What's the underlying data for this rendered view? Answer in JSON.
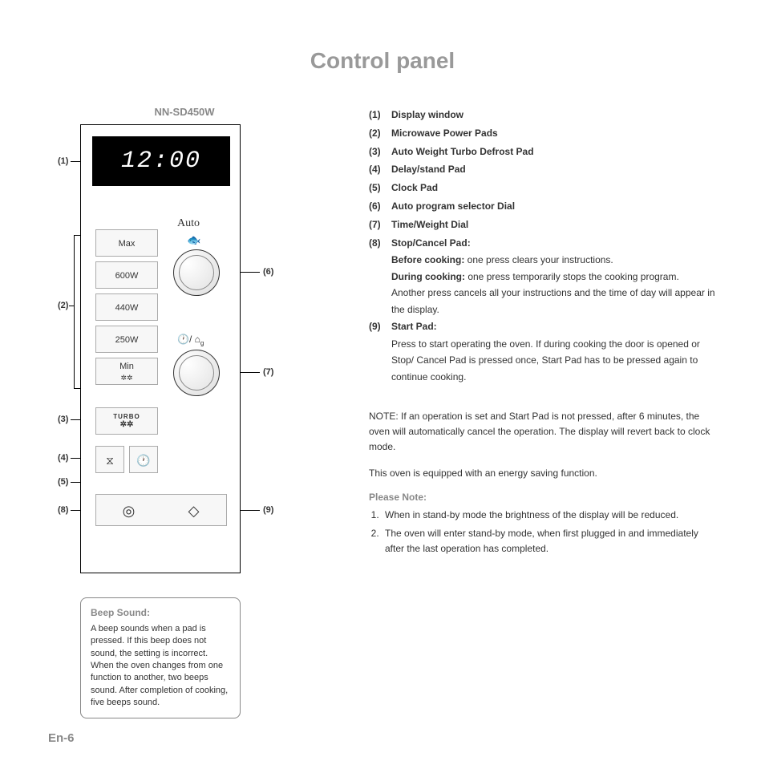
{
  "title": "Control panel",
  "model": "NN-SD450W",
  "display_value": "12:00",
  "power_pads": [
    "Max",
    "600W",
    "440W",
    "250W",
    "Min\n❄",
    ""
  ],
  "auto_label": "Auto",
  "clock_weight_symbols": "🕐/ ⌂g",
  "turbo_label": "TURBO",
  "turbo_flake": "❄",
  "delay_icon": "⧖",
  "clock_icon": "🕐",
  "stop_icon": "◎",
  "start_icon": "◇",
  "callouts": {
    "c1": "(1)",
    "c2": "(2)",
    "c3": "(3)",
    "c4": "(4)",
    "c5": "(5)",
    "c6": "(6)",
    "c7": "(7)",
    "c8": "(8)",
    "c9": "(9)"
  },
  "beep": {
    "title": "Beep Sound:",
    "body": "A beep sounds when a pad is pressed. If this beep does not sound, the setting is incorrect. When the oven changes from one function to another, two beeps sound. After completion of cooking, five beeps sound."
  },
  "legend": [
    {
      "num": "(1)",
      "label": "Display window"
    },
    {
      "num": "(2)",
      "label": "Microwave Power Pads"
    },
    {
      "num": "(3)",
      "label": "Auto Weight Turbo Defrost Pad"
    },
    {
      "num": "(4)",
      "label": "Delay/stand Pad"
    },
    {
      "num": "(5)",
      "label": "Clock Pad"
    },
    {
      "num": "(6)",
      "label": "Auto program selector Dial"
    },
    {
      "num": "(7)",
      "label": "Time/Weight Dial"
    },
    {
      "num": "(8)",
      "label": "Stop/Cancel Pad:",
      "sub": [
        {
          "b": "Before cooking:",
          "t": " one press clears your instructions."
        },
        {
          "b": "During cooking:",
          "t": " one press temporarily stops the cooking program."
        },
        {
          "b": "",
          "t": "Another press cancels all your instructions and the time of day will appear in the display."
        }
      ]
    },
    {
      "num": "(9)",
      "label": "Start Pad:",
      "sub": [
        {
          "b": "",
          "t": "Press to start operating the oven. If during cooking the door is opened or Stop/ Cancel Pad is pressed once, Start Pad has to be pressed again to continue cooking."
        }
      ]
    }
  ],
  "note_text": "NOTE: If an operation is set and Start Pad is not pressed, after 6 minutes, the oven will automatically cancel the operation. The display will revert back to clock mode.",
  "energy_text": "This oven is equipped with an energy saving function.",
  "please_note": "Please Note:",
  "notes": [
    "When in stand-by mode the brightness of the display will be reduced.",
    "The oven will enter stand-by mode, when first plugged in and immediately after the last operation has completed."
  ],
  "page_num": "En-6",
  "colors": {
    "title_gray": "#999999",
    "border": "#000000",
    "pad_bg": "#f7f7f7",
    "pad_border": "#aaaaaa"
  }
}
